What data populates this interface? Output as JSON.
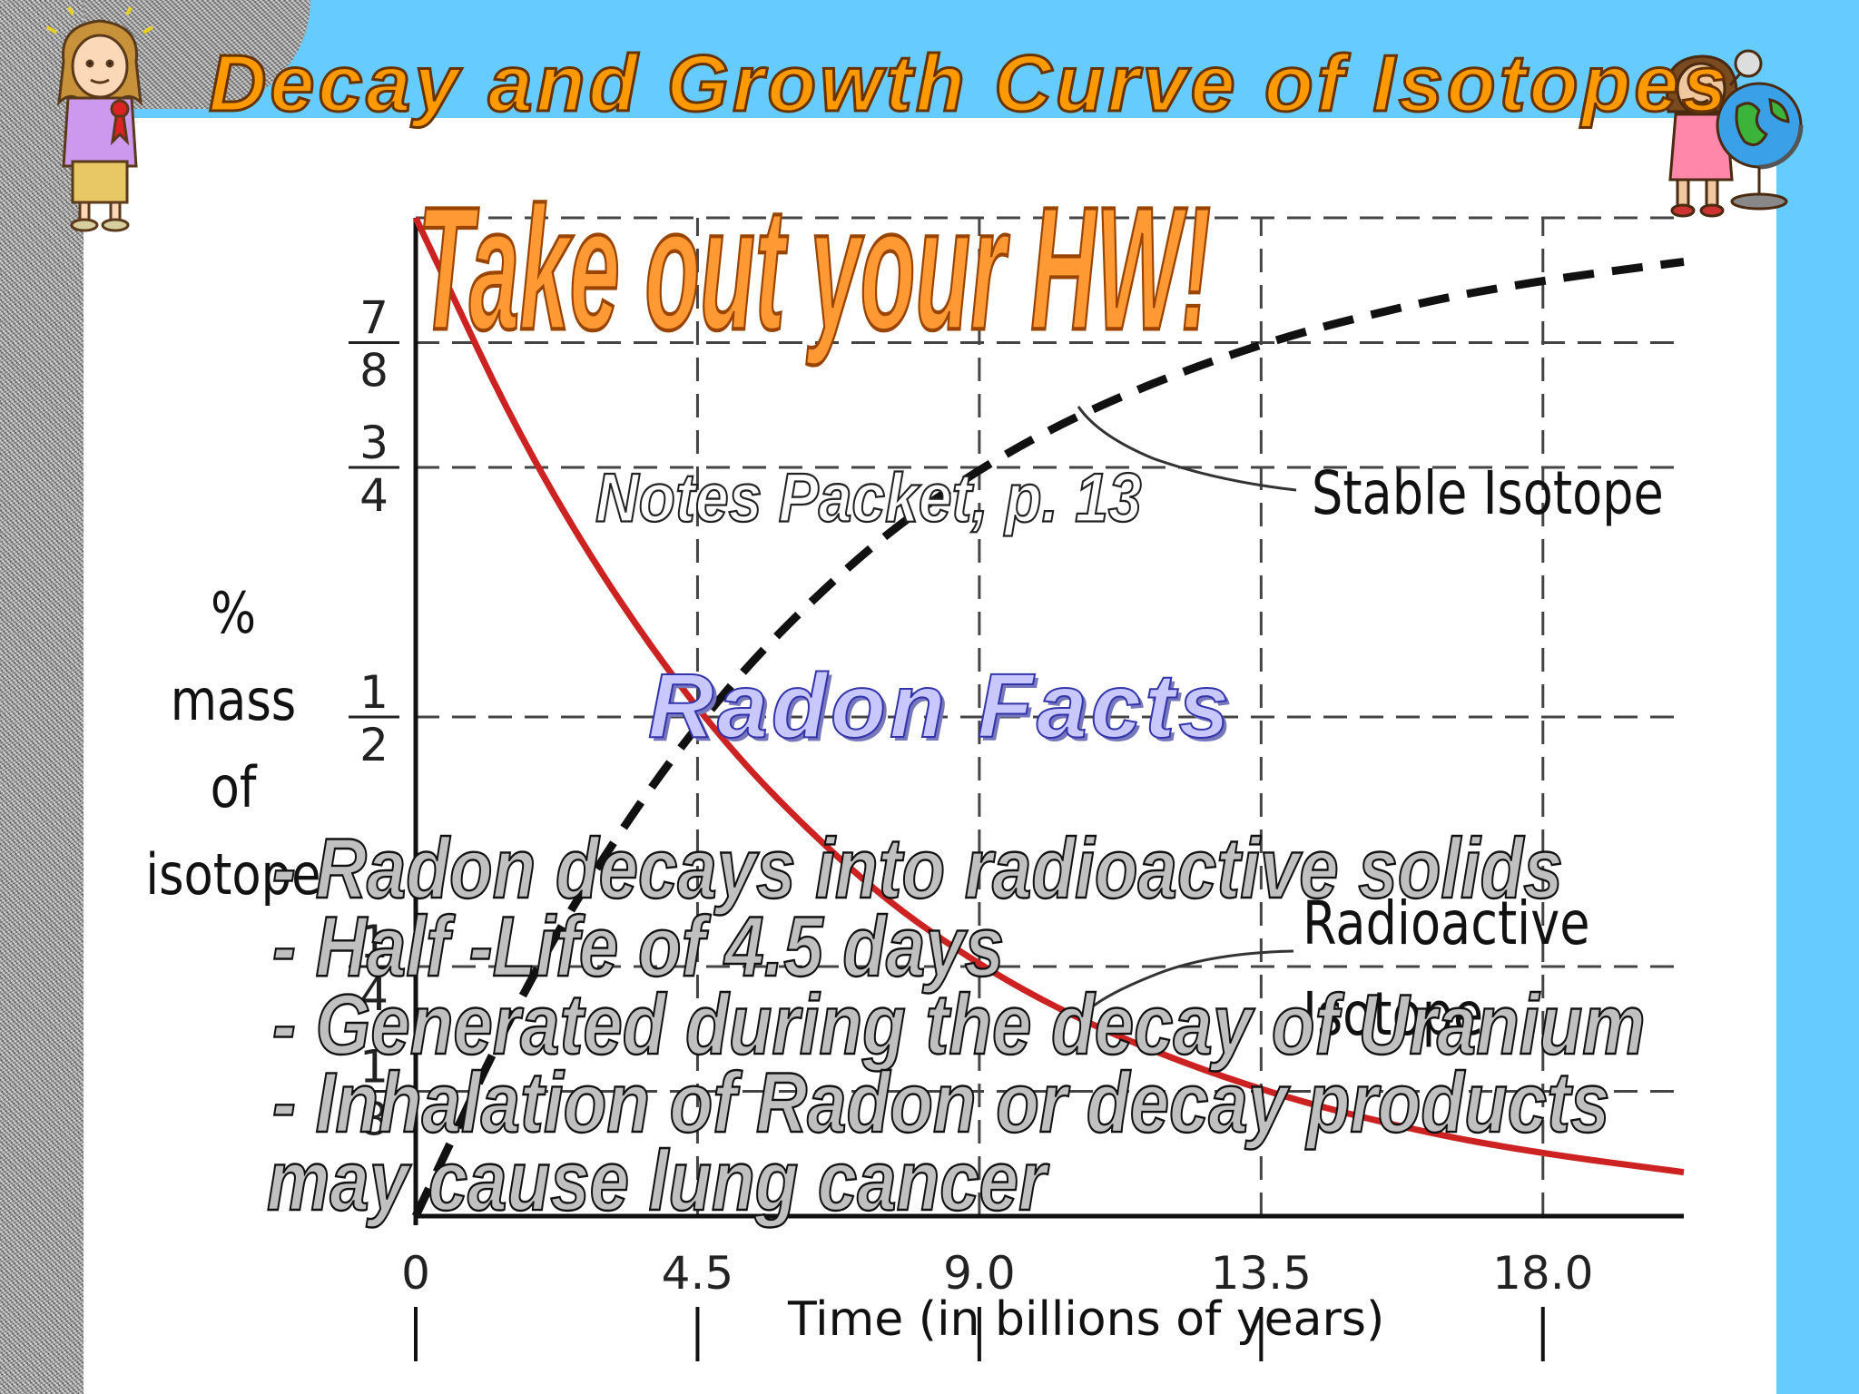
{
  "slide": {
    "title": "Decay and Growth Curve of Isotopes",
    "banner": "Take out your HW!",
    "subtitle": "Notes Packet, p. 13",
    "section_title": "Radon Facts",
    "bullets": [
      "- Radon decays into radioactive solids",
      "- Half -Life of 4.5 days",
      "- Generated during the decay of Uranium",
      "- Inhalation of Radon or decay products",
      "may cause lung cancer"
    ]
  },
  "colors": {
    "accent_blue": "#66ccff",
    "title_orange": "#ff9900",
    "decay_curve_red": "#cc2222"
  },
  "icons": [
    "girl-with-ribbon-clipart",
    "girl-with-globe-clipart"
  ],
  "chart_data": {
    "type": "line",
    "xlabel": "Time (in billions of years)",
    "ylabel_lines": [
      "% mass",
      "of",
      "isotope"
    ],
    "x_ticks": [
      "0",
      "4.5",
      "9.0",
      "13.5",
      "18.0"
    ],
    "y_ticks": [
      {
        "num": "1",
        "den": "8"
      },
      {
        "num": "1",
        "den": "4"
      },
      {
        "num": "1",
        "den": "2"
      },
      {
        "num": "3",
        "den": "4"
      },
      {
        "num": "7",
        "den": "8"
      }
    ],
    "xlim": [
      0,
      20.25
    ],
    "ylim": [
      0,
      1
    ],
    "grid": "dashed lines at half-life intervals",
    "series": [
      {
        "name": "Radioactive Isotope",
        "style": "solid",
        "x": [
          0,
          2,
          4.5,
          7,
          9,
          11,
          13.5,
          16,
          18,
          20.25
        ],
        "y": [
          1,
          0.735,
          0.5,
          0.34,
          0.25,
          0.184,
          0.125,
          0.085,
          0.0625,
          0.044
        ]
      },
      {
        "name": "Stable Isotope",
        "style": "dashed",
        "x": [
          0,
          2,
          4.5,
          7,
          9,
          11,
          13.5,
          16,
          18,
          20.25
        ],
        "y": [
          0,
          0.265,
          0.5,
          0.66,
          0.75,
          0.816,
          0.875,
          0.915,
          0.9375,
          0.956
        ]
      }
    ],
    "annotations": [
      "Stable Isotope",
      "Radioactive",
      "Isotope"
    ]
  }
}
